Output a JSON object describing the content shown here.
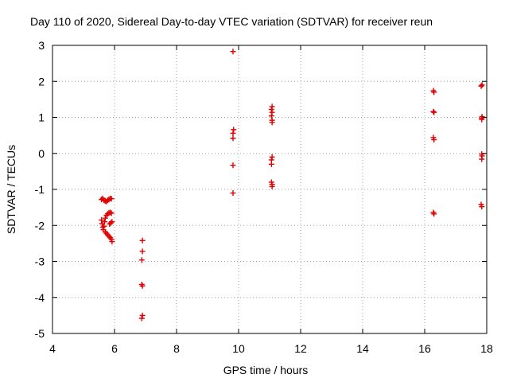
{
  "chart_data": {
    "type": "scatter",
    "title": "Day 110 of 2020, Sidereal Day-to-day VTEC variation (SDTVAR) for receiver reun",
    "xlabel": "GPS time / hours",
    "ylabel": "SDTVAR / TECUs",
    "xlim": [
      4,
      18
    ],
    "ylim": [
      -5,
      3
    ],
    "grid": true,
    "marker": "+",
    "color": "#e00000",
    "xticks": [
      "4",
      "6",
      "8",
      "10",
      "12",
      "14",
      "16",
      "18"
    ],
    "yticks": [
      "3",
      "2",
      "1",
      "0",
      "-1",
      "-2",
      "-3",
      "-4",
      "-5"
    ],
    "xtick_values": [
      4,
      6,
      8,
      10,
      12,
      14,
      16,
      18
    ],
    "ytick_values": [
      3,
      2,
      1,
      0,
      -1,
      -2,
      -3,
      -4,
      -5
    ],
    "series": [
      {
        "name": "SDTVAR",
        "points": [
          [
            5.58,
            -1.28
          ],
          [
            5.62,
            -1.25
          ],
          [
            5.66,
            -1.3
          ],
          [
            5.7,
            -1.32
          ],
          [
            5.74,
            -1.34
          ],
          [
            5.78,
            -1.3
          ],
          [
            5.82,
            -1.28
          ],
          [
            5.86,
            -1.25
          ],
          [
            5.9,
            -1.26
          ],
          [
            5.58,
            -1.85
          ],
          [
            5.6,
            -1.95
          ],
          [
            5.62,
            -2.05
          ],
          [
            5.64,
            -2.12
          ],
          [
            5.66,
            -2.02
          ],
          [
            5.68,
            -1.9
          ],
          [
            5.7,
            -1.8
          ],
          [
            5.74,
            -1.72
          ],
          [
            5.78,
            -1.68
          ],
          [
            5.82,
            -1.65
          ],
          [
            5.86,
            -1.64
          ],
          [
            5.9,
            -1.66
          ],
          [
            5.7,
            -2.18
          ],
          [
            5.74,
            -2.22
          ],
          [
            5.78,
            -2.26
          ],
          [
            5.82,
            -2.3
          ],
          [
            5.86,
            -2.34
          ],
          [
            5.9,
            -2.38
          ],
          [
            5.92,
            -2.45
          ],
          [
            5.84,
            -1.96
          ],
          [
            5.88,
            -1.93
          ],
          [
            5.92,
            -1.9
          ],
          [
            6.9,
            -2.42
          ],
          [
            6.9,
            -2.72
          ],
          [
            6.88,
            -2.96
          ],
          [
            6.88,
            -3.64
          ],
          [
            6.9,
            -3.68
          ],
          [
            6.9,
            -4.5
          ],
          [
            6.88,
            -4.58
          ],
          [
            9.82,
            2.83
          ],
          [
            9.84,
            0.66
          ],
          [
            9.82,
            0.56
          ],
          [
            9.82,
            0.42
          ],
          [
            9.82,
            -0.33
          ],
          [
            9.82,
            -1.1
          ],
          [
            11.08,
            1.3
          ],
          [
            11.06,
            1.22
          ],
          [
            11.08,
            1.14
          ],
          [
            11.06,
            1.04
          ],
          [
            11.08,
            0.92
          ],
          [
            11.08,
            0.86
          ],
          [
            11.08,
            -0.1
          ],
          [
            11.06,
            -0.18
          ],
          [
            11.06,
            -0.3
          ],
          [
            11.06,
            -0.8
          ],
          [
            11.08,
            -0.86
          ],
          [
            11.08,
            -0.92
          ],
          [
            16.28,
            1.74
          ],
          [
            16.3,
            1.7
          ],
          [
            16.28,
            1.16
          ],
          [
            16.3,
            1.14
          ],
          [
            16.28,
            0.44
          ],
          [
            16.3,
            0.38
          ],
          [
            16.28,
            -1.64
          ],
          [
            16.3,
            -1.68
          ],
          [
            17.85,
            1.9
          ],
          [
            17.82,
            1.87
          ],
          [
            17.85,
            1.02
          ],
          [
            17.84,
            0.98
          ],
          [
            17.84,
            0.94
          ],
          [
            17.84,
            -0.02
          ],
          [
            17.85,
            -0.07
          ],
          [
            17.84,
            -0.16
          ],
          [
            17.82,
            -1.42
          ],
          [
            17.84,
            -1.48
          ]
        ]
      }
    ]
  }
}
